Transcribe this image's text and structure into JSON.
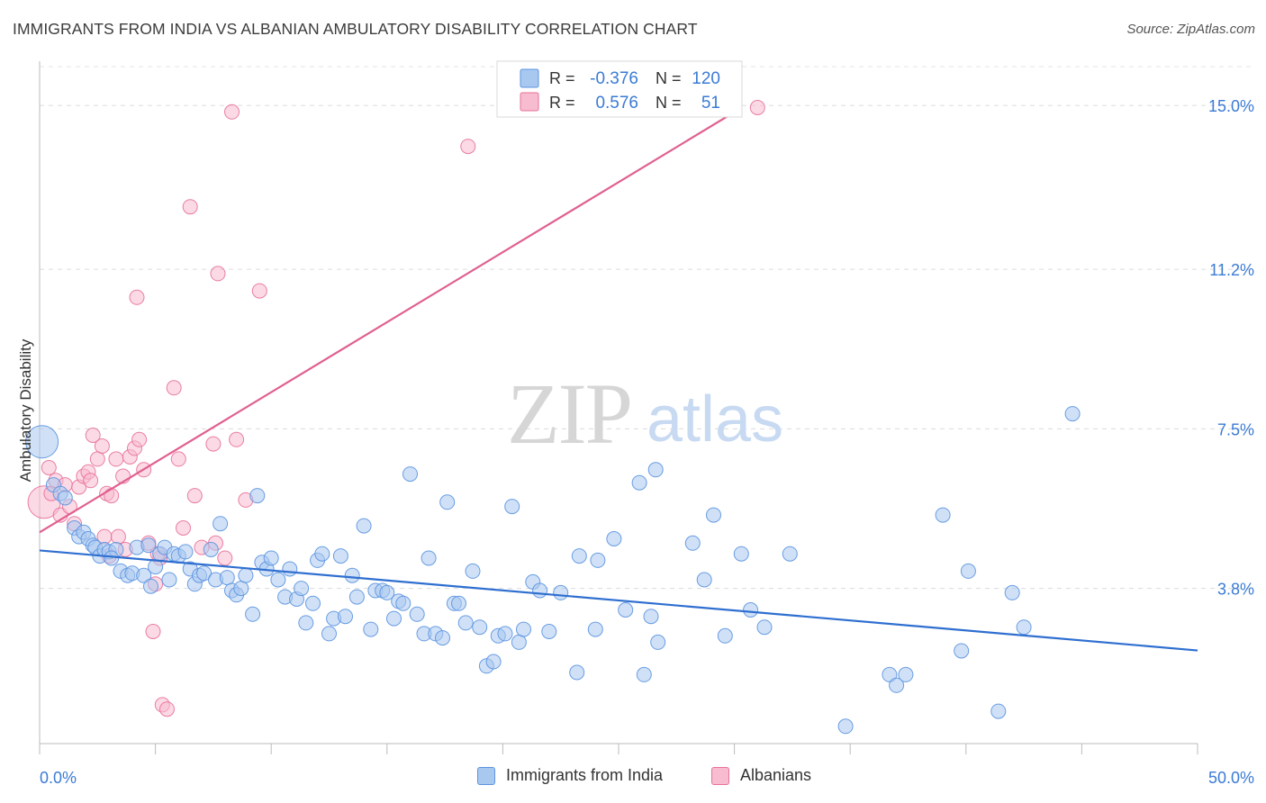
{
  "header": {
    "title": "IMMIGRANTS FROM INDIA VS ALBANIAN AMBULATORY DISABILITY CORRELATION CHART",
    "source": "Source: ZipAtlas.com"
  },
  "watermark": {
    "zip": "ZIP",
    "atlas": "atlas"
  },
  "chart_data": {
    "type": "scatter",
    "title": "IMMIGRANTS FROM INDIA VS ALBANIAN AMBULATORY DISABILITY CORRELATION CHART",
    "xlabel": "",
    "ylabel": "Ambulatory Disability",
    "xlim": [
      0,
      50
    ],
    "ylim": [
      0.2,
      15.9
    ],
    "x_tick_labels": [
      "0.0%",
      "50.0%"
    ],
    "y_ticks": [
      3.8,
      7.5,
      11.2,
      15.0
    ],
    "y_tick_labels": [
      "3.8%",
      "7.5%",
      "11.2%",
      "15.0%"
    ],
    "grid": "horizontal dashed",
    "legend_placement": "top-center (stats) and bottom-center (series)",
    "stats": [
      {
        "r_label": "R =",
        "r_value": "-0.376",
        "n_label": "N =",
        "n_value": "120"
      },
      {
        "r_label": "R =",
        "r_value": "0.576",
        "n_label": "N =",
        "n_value": "51"
      }
    ],
    "series": [
      {
        "name": "Immigrants from India",
        "color": "#5b93e0",
        "fill": "#a9c8f0",
        "trend": {
          "x": [
            0,
            50
          ],
          "y": [
            4.68,
            2.36
          ]
        },
        "points": [
          {
            "x": 0.1,
            "y": 7.2,
            "big": true
          },
          {
            "x": 0.6,
            "y": 6.2
          },
          {
            "x": 0.9,
            "y": 6.0
          },
          {
            "x": 1.1,
            "y": 5.9
          },
          {
            "x": 1.5,
            "y": 5.2
          },
          {
            "x": 1.7,
            "y": 5.0
          },
          {
            "x": 1.9,
            "y": 5.1
          },
          {
            "x": 2.1,
            "y": 4.95
          },
          {
            "x": 2.3,
            "y": 4.8
          },
          {
            "x": 2.4,
            "y": 4.75
          },
          {
            "x": 2.6,
            "y": 4.55
          },
          {
            "x": 2.8,
            "y": 4.7
          },
          {
            "x": 3.0,
            "y": 4.65
          },
          {
            "x": 3.3,
            "y": 4.7
          },
          {
            "x": 3.1,
            "y": 4.5
          },
          {
            "x": 3.5,
            "y": 4.2
          },
          {
            "x": 3.8,
            "y": 4.1
          },
          {
            "x": 4.0,
            "y": 4.15
          },
          {
            "x": 4.2,
            "y": 4.75
          },
          {
            "x": 4.5,
            "y": 4.1
          },
          {
            "x": 4.7,
            "y": 4.8
          },
          {
            "x": 4.8,
            "y": 3.85
          },
          {
            "x": 5.0,
            "y": 4.3
          },
          {
            "x": 5.2,
            "y": 4.6
          },
          {
            "x": 5.4,
            "y": 4.75
          },
          {
            "x": 5.6,
            "y": 4.0
          },
          {
            "x": 5.8,
            "y": 4.6
          },
          {
            "x": 6.0,
            "y": 4.55
          },
          {
            "x": 6.3,
            "y": 4.65
          },
          {
            "x": 6.5,
            "y": 4.25
          },
          {
            "x": 6.7,
            "y": 3.9
          },
          {
            "x": 6.9,
            "y": 4.1
          },
          {
            "x": 7.1,
            "y": 4.15
          },
          {
            "x": 7.4,
            "y": 4.7
          },
          {
            "x": 7.6,
            "y": 4.0
          },
          {
            "x": 7.8,
            "y": 5.3
          },
          {
            "x": 8.1,
            "y": 4.05
          },
          {
            "x": 8.3,
            "y": 3.75
          },
          {
            "x": 8.5,
            "y": 3.65
          },
          {
            "x": 8.7,
            "y": 3.8
          },
          {
            "x": 8.9,
            "y": 4.1
          },
          {
            "x": 9.2,
            "y": 3.2
          },
          {
            "x": 9.4,
            "y": 5.95
          },
          {
            "x": 9.6,
            "y": 4.4
          },
          {
            "x": 9.8,
            "y": 4.25
          },
          {
            "x": 10.0,
            "y": 4.5
          },
          {
            "x": 10.3,
            "y": 4.0
          },
          {
            "x": 10.6,
            "y": 3.6
          },
          {
            "x": 10.8,
            "y": 4.25
          },
          {
            "x": 11.1,
            "y": 3.55
          },
          {
            "x": 11.3,
            "y": 3.8
          },
          {
            "x": 11.5,
            "y": 3.0
          },
          {
            "x": 11.8,
            "y": 3.45
          },
          {
            "x": 12.0,
            "y": 4.45
          },
          {
            "x": 12.2,
            "y": 4.6
          },
          {
            "x": 12.5,
            "y": 2.75
          },
          {
            "x": 12.7,
            "y": 3.1
          },
          {
            "x": 13.0,
            "y": 4.55
          },
          {
            "x": 13.2,
            "y": 3.15
          },
          {
            "x": 13.5,
            "y": 4.1
          },
          {
            "x": 13.7,
            "y": 3.6
          },
          {
            "x": 14.0,
            "y": 5.25
          },
          {
            "x": 14.3,
            "y": 2.85
          },
          {
            "x": 14.5,
            "y": 3.75
          },
          {
            "x": 14.8,
            "y": 3.75
          },
          {
            "x": 15.0,
            "y": 3.7
          },
          {
            "x": 15.3,
            "y": 3.1
          },
          {
            "x": 15.5,
            "y": 3.5
          },
          {
            "x": 15.7,
            "y": 3.45
          },
          {
            "x": 16.0,
            "y": 6.45
          },
          {
            "x": 16.3,
            "y": 3.2
          },
          {
            "x": 16.6,
            "y": 2.75
          },
          {
            "x": 16.8,
            "y": 4.5
          },
          {
            "x": 17.1,
            "y": 2.75
          },
          {
            "x": 17.4,
            "y": 2.65
          },
          {
            "x": 17.6,
            "y": 5.8
          },
          {
            "x": 17.9,
            "y": 3.45
          },
          {
            "x": 18.1,
            "y": 3.45
          },
          {
            "x": 18.4,
            "y": 3.0
          },
          {
            "x": 18.7,
            "y": 4.2
          },
          {
            "x": 19.0,
            "y": 2.9
          },
          {
            "x": 19.3,
            "y": 2.0
          },
          {
            "x": 19.6,
            "y": 2.1
          },
          {
            "x": 19.8,
            "y": 2.7
          },
          {
            "x": 20.1,
            "y": 2.75
          },
          {
            "x": 20.4,
            "y": 5.7
          },
          {
            "x": 20.7,
            "y": 2.55
          },
          {
            "x": 20.9,
            "y": 2.85
          },
          {
            "x": 21.3,
            "y": 3.95
          },
          {
            "x": 21.6,
            "y": 3.75
          },
          {
            "x": 22.0,
            "y": 2.8
          },
          {
            "x": 22.5,
            "y": 3.7
          },
          {
            "x": 23.2,
            "y": 1.85
          },
          {
            "x": 23.3,
            "y": 4.55
          },
          {
            "x": 24.0,
            "y": 2.85
          },
          {
            "x": 24.8,
            "y": 4.95
          },
          {
            "x": 25.3,
            "y": 3.3
          },
          {
            "x": 24.1,
            "y": 4.45
          },
          {
            "x": 25.9,
            "y": 6.25
          },
          {
            "x": 26.1,
            "y": 1.8
          },
          {
            "x": 26.4,
            "y": 3.15
          },
          {
            "x": 26.6,
            "y": 6.55
          },
          {
            "x": 26.7,
            "y": 2.55
          },
          {
            "x": 28.2,
            "y": 4.85
          },
          {
            "x": 28.7,
            "y": 4.0
          },
          {
            "x": 29.1,
            "y": 5.5
          },
          {
            "x": 30.3,
            "y": 4.6
          },
          {
            "x": 29.6,
            "y": 2.7
          },
          {
            "x": 30.7,
            "y": 3.3
          },
          {
            "x": 31.3,
            "y": 2.9
          },
          {
            "x": 32.4,
            "y": 4.6
          },
          {
            "x": 34.8,
            "y": 0.6
          },
          {
            "x": 36.7,
            "y": 1.8
          },
          {
            "x": 37.0,
            "y": 1.55
          },
          {
            "x": 37.4,
            "y": 1.8
          },
          {
            "x": 39.0,
            "y": 5.5
          },
          {
            "x": 39.8,
            "y": 2.35
          },
          {
            "x": 40.1,
            "y": 4.2
          },
          {
            "x": 41.4,
            "y": 0.95
          },
          {
            "x": 42.0,
            "y": 3.7
          },
          {
            "x": 42.5,
            "y": 2.9
          },
          {
            "x": 44.6,
            "y": 7.85
          }
        ]
      },
      {
        "name": "Albanians",
        "color": "#e8719a",
        "fill": "#f7bcd0",
        "trend": {
          "x": [
            0,
            29.8
          ],
          "y": [
            5.1,
            14.78
          ]
        },
        "points": [
          {
            "x": 0.2,
            "y": 5.8,
            "big": true
          },
          {
            "x": 0.4,
            "y": 6.6
          },
          {
            "x": 0.5,
            "y": 6.0
          },
          {
            "x": 0.7,
            "y": 6.3
          },
          {
            "x": 0.9,
            "y": 5.5
          },
          {
            "x": 1.1,
            "y": 6.2
          },
          {
            "x": 1.3,
            "y": 5.7
          },
          {
            "x": 1.5,
            "y": 5.3
          },
          {
            "x": 1.7,
            "y": 6.15
          },
          {
            "x": 1.9,
            "y": 6.4
          },
          {
            "x": 2.1,
            "y": 6.5
          },
          {
            "x": 2.2,
            "y": 6.3
          },
          {
            "x": 2.3,
            "y": 7.35
          },
          {
            "x": 2.5,
            "y": 6.8
          },
          {
            "x": 2.7,
            "y": 7.1
          },
          {
            "x": 2.8,
            "y": 5.0
          },
          {
            "x": 2.9,
            "y": 6.0
          },
          {
            "x": 3.0,
            "y": 4.55
          },
          {
            "x": 3.1,
            "y": 5.95
          },
          {
            "x": 3.3,
            "y": 6.8
          },
          {
            "x": 3.4,
            "y": 5.0
          },
          {
            "x": 3.6,
            "y": 6.4
          },
          {
            "x": 3.7,
            "y": 4.7
          },
          {
            "x": 3.9,
            "y": 6.85
          },
          {
            "x": 4.1,
            "y": 7.05
          },
          {
            "x": 4.2,
            "y": 10.55
          },
          {
            "x": 4.3,
            "y": 7.25
          },
          {
            "x": 4.5,
            "y": 6.55
          },
          {
            "x": 4.7,
            "y": 4.85
          },
          {
            "x": 4.9,
            "y": 2.8
          },
          {
            "x": 5.0,
            "y": 3.9
          },
          {
            "x": 5.2,
            "y": 4.5
          },
          {
            "x": 5.3,
            "y": 1.1
          },
          {
            "x": 5.5,
            "y": 1.0
          },
          {
            "x": 5.8,
            "y": 8.45
          },
          {
            "x": 6.0,
            "y": 6.8
          },
          {
            "x": 6.2,
            "y": 5.2
          },
          {
            "x": 6.5,
            "y": 12.65
          },
          {
            "x": 6.7,
            "y": 5.95
          },
          {
            "x": 7.0,
            "y": 4.75
          },
          {
            "x": 7.5,
            "y": 7.15
          },
          {
            "x": 7.6,
            "y": 4.85
          },
          {
            "x": 7.7,
            "y": 11.1
          },
          {
            "x": 8.0,
            "y": 4.5
          },
          {
            "x": 8.3,
            "y": 14.85
          },
          {
            "x": 8.5,
            "y": 7.25
          },
          {
            "x": 8.9,
            "y": 5.85
          },
          {
            "x": 9.5,
            "y": 10.7
          },
          {
            "x": 18.5,
            "y": 14.05
          },
          {
            "x": 31.0,
            "y": 14.95
          },
          {
            "x": 5.1,
            "y": 4.6
          }
        ]
      }
    ]
  }
}
